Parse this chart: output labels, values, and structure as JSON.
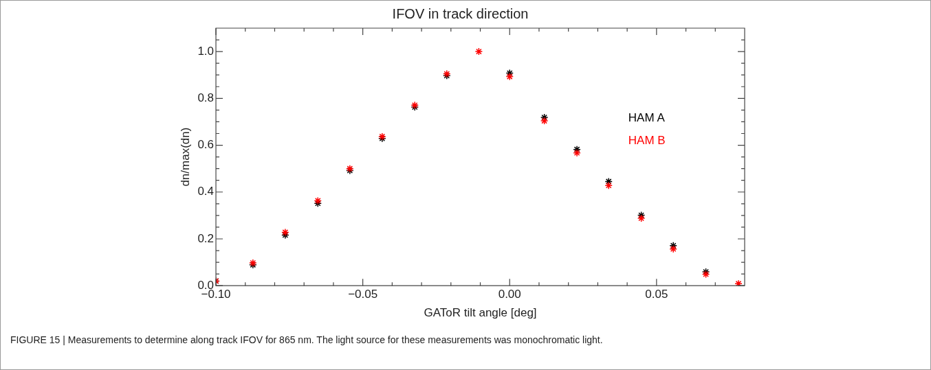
{
  "chart_data": {
    "type": "scatter",
    "title": "IFOV in track direction",
    "xlabel": "GAToR tilt angle [deg]",
    "ylabel": "dn/max(dn)",
    "x": [
      -0.1,
      -0.0874,
      -0.0764,
      -0.0653,
      -0.0544,
      -0.0434,
      -0.0323,
      -0.0214,
      -0.0105,
      0.0,
      0.0118,
      0.0229,
      0.0337,
      0.0448,
      0.0557,
      0.0668,
      0.0779
    ],
    "series": [
      {
        "name": "HAM A",
        "color": "#000000",
        "values": [
          0.02,
          0.089,
          0.216,
          0.352,
          0.492,
          0.629,
          0.763,
          0.897,
          null,
          0.908,
          0.719,
          0.582,
          0.445,
          0.301,
          0.171,
          0.059,
          null
        ]
      },
      {
        "name": "HAM B",
        "color": "#ff0000",
        "values": [
          0.02,
          0.097,
          0.228,
          0.363,
          0.5,
          0.637,
          0.771,
          0.905,
          1.0,
          0.893,
          0.704,
          0.567,
          0.428,
          0.288,
          0.157,
          0.049,
          0.009
        ]
      }
    ],
    "xlim": [
      -0.1,
      0.08
    ],
    "xticks": [
      {
        "value": -0.1,
        "label": "−0.10"
      },
      {
        "value": -0.09,
        "label": null
      },
      {
        "value": -0.08,
        "label": null
      },
      {
        "value": -0.07,
        "label": null
      },
      {
        "value": -0.06,
        "label": null
      },
      {
        "value": -0.05,
        "label": "−0.05"
      },
      {
        "value": -0.04,
        "label": null
      },
      {
        "value": -0.03,
        "label": null
      },
      {
        "value": -0.02,
        "label": null
      },
      {
        "value": -0.01,
        "label": null
      },
      {
        "value": 0,
        "label": "0.00"
      },
      {
        "value": 0.01,
        "label": null
      },
      {
        "value": 0.02,
        "label": null
      },
      {
        "value": 0.03,
        "label": null
      },
      {
        "value": 0.04,
        "label": null
      },
      {
        "value": 0.05,
        "label": "0.05"
      },
      {
        "value": 0.06,
        "label": null
      },
      {
        "value": 0.07,
        "label": null
      }
    ],
    "ylim": [
      0,
      1.1
    ],
    "yticks": [
      {
        "value": 0,
        "label": "0.0"
      },
      {
        "value": 0.05,
        "label": null
      },
      {
        "value": 0.1,
        "label": null
      },
      {
        "value": 0.15,
        "label": null
      },
      {
        "value": 0.2,
        "label": "0.2"
      },
      {
        "value": 0.25,
        "label": null
      },
      {
        "value": 0.3,
        "label": null
      },
      {
        "value": 0.35,
        "label": null
      },
      {
        "value": 0.4,
        "label": "0.4"
      },
      {
        "value": 0.45,
        "label": null
      },
      {
        "value": 0.5,
        "label": null
      },
      {
        "value": 0.55,
        "label": null
      },
      {
        "value": 0.6,
        "label": "0.6"
      },
      {
        "value": 0.65,
        "label": null
      },
      {
        "value": 0.7,
        "label": null
      },
      {
        "value": 0.75,
        "label": null
      },
      {
        "value": 0.8,
        "label": "0.8"
      },
      {
        "value": 0.85,
        "label": null
      },
      {
        "value": 0.9,
        "label": null
      },
      {
        "value": 0.95,
        "label": null
      },
      {
        "value": 1.0,
        "label": "1.0"
      },
      {
        "value": 1.05,
        "label": null
      }
    ],
    "grid": false,
    "legend": "right",
    "marker": "cross",
    "annotations": [
      "FIGURE 15 | Measurements to determine along track IFOV for 865 nm. The light source for these measurements was monochromatic light."
    ]
  }
}
